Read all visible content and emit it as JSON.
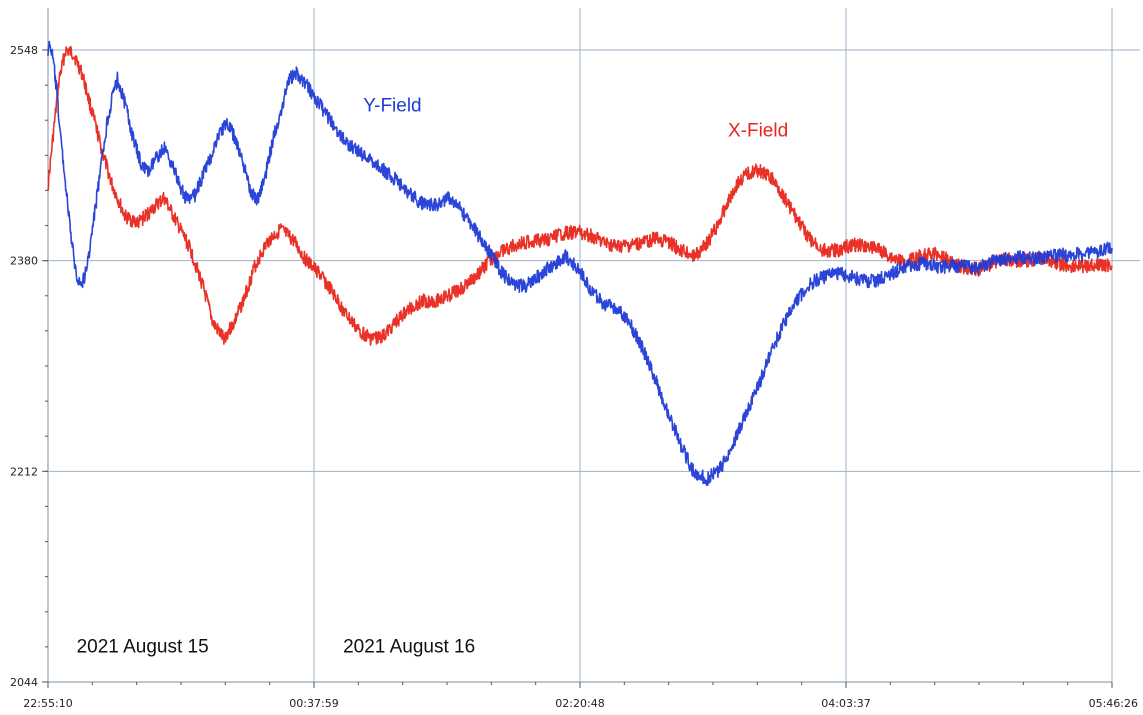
{
  "chart_data": {
    "type": "line",
    "grid": true,
    "y_ticks": [
      2044,
      2212,
      2380,
      2548
    ],
    "ylim": [
      2044,
      2548
    ],
    "x_ticks": [
      "22:55:10",
      "00:37:59",
      "02:20:48",
      "04:03:37",
      "05:46:26"
    ],
    "xlim": [
      "22:55:10",
      "05:46:26"
    ],
    "annotations": [
      {
        "text": "2021 August 15",
        "time": "22:58:30",
        "value": 2066
      },
      {
        "text": "2021 August 16",
        "time": "00:41:30",
        "value": 2066
      }
    ],
    "series": [
      {
        "name": "X-Field",
        "color": "#e8261b",
        "label_at": {
          "time": "03:18:00",
          "value": 2479
        },
        "x": [
          "22:55:10",
          "22:57:10",
          "22:59:30",
          "23:02:00",
          "23:05:00",
          "23:08:30",
          "23:12:00",
          "23:16:00",
          "23:20:00",
          "23:25:00",
          "23:30:00",
          "23:35:00",
          "23:40:00",
          "23:45:00",
          "23:50:00",
          "23:55:00",
          "23:59:00",
          "00:03:00",
          "00:07:00",
          "00:11:00",
          "00:15:00",
          "00:20:00",
          "00:25:00",
          "00:30:00",
          "00:35:00",
          "00:40:00",
          "00:45:00",
          "00:50:00",
          "00:55:00",
          "01:00:00",
          "01:05:00",
          "01:10:00",
          "01:15:00",
          "01:20:00",
          "01:25:00",
          "01:30:00",
          "01:35:00",
          "01:40:00",
          "01:45:00",
          "01:50:00",
          "01:55:00",
          "02:00:00",
          "02:05:00",
          "02:10:00",
          "02:15:00",
          "02:20:00",
          "02:25:00",
          "02:30:00",
          "02:35:00",
          "02:40:00",
          "02:45:00",
          "02:50:00",
          "02:55:00",
          "03:00:00",
          "03:05:00",
          "03:10:00",
          "03:15:00",
          "03:18:00",
          "03:22:00",
          "03:26:00",
          "03:30:00",
          "03:35:00",
          "03:40:00",
          "03:45:00",
          "03:50:00",
          "03:55:00",
          "04:00:00",
          "04:05:00",
          "04:10:00",
          "04:15:00",
          "04:20:00",
          "04:25:00",
          "04:30:00",
          "04:35:00",
          "04:40:00",
          "04:45:00",
          "04:50:00",
          "04:55:00",
          "05:00:00",
          "05:05:00",
          "05:10:00",
          "05:15:00",
          "05:20:00",
          "05:25:00",
          "05:30:00",
          "05:35:00",
          "05:40:00",
          "05:46:26"
        ],
        "y": [
          2440,
          2480,
          2525,
          2548,
          2545,
          2528,
          2500,
          2468,
          2440,
          2415,
          2410,
          2420,
          2430,
          2410,
          2390,
          2360,
          2330,
          2318,
          2330,
          2350,
          2375,
          2395,
          2405,
          2396,
          2380,
          2370,
          2355,
          2338,
          2325,
          2318,
          2320,
          2332,
          2342,
          2348,
          2348,
          2352,
          2358,
          2366,
          2378,
          2386,
          2392,
          2395,
          2396,
          2398,
          2402,
          2403,
          2400,
          2394,
          2391,
          2392,
          2394,
          2398,
          2395,
          2388,
          2384,
          2394,
          2412,
          2428,
          2442,
          2450,
          2452,
          2445,
          2430,
          2412,
          2396,
          2388,
          2388,
          2392,
          2393,
          2390,
          2384,
          2379,
          2382,
          2385,
          2385,
          2378,
          2374,
          2373,
          2378,
          2381,
          2380,
          2380,
          2382,
          2378,
          2375,
          2376,
          2376,
          2376
        ]
      },
      {
        "name": "Y-Field",
        "color": "#1f3bd6",
        "label_at": {
          "time": "00:57:00",
          "value": 2499
        },
        "x": [
          "22:55:10",
          "22:56:00",
          "22:57:10",
          "22:58:30",
          "23:00:00",
          "23:02:00",
          "23:04:00",
          "23:06:00",
          "23:08:00",
          "23:10:00",
          "23:12:00",
          "23:14:00",
          "23:16:00",
          "23:18:00",
          "23:20:00",
          "23:22:00",
          "23:25:00",
          "23:28:00",
          "23:31:00",
          "23:34:00",
          "23:37:00",
          "23:40:00",
          "23:43:00",
          "23:46:00",
          "23:49:00",
          "23:52:00",
          "23:55:00",
          "23:58:00",
          "00:01:00",
          "00:04:00",
          "00:07:00",
          "00:10:00",
          "00:13:00",
          "00:16:00",
          "00:19:00",
          "00:22:00",
          "00:25:00",
          "00:28:00",
          "00:31:00",
          "00:35:00",
          "00:40:00",
          "00:45:00",
          "00:50:00",
          "00:55:00",
          "01:00:00",
          "01:05:00",
          "01:10:00",
          "01:15:00",
          "01:20:00",
          "01:25:00",
          "01:30:00",
          "01:35:00",
          "01:40:00",
          "01:45:00",
          "01:50:00",
          "01:55:00",
          "02:00:00",
          "02:05:00",
          "02:10:00",
          "02:15:00",
          "02:20:00",
          "02:25:00",
          "02:30:00",
          "02:35:00",
          "02:40:00",
          "02:45:00",
          "02:50:00",
          "02:55:00",
          "03:00:00",
          "03:05:00",
          "03:10:00",
          "03:15:00",
          "03:20:00",
          "03:25:00",
          "03:30:00",
          "03:35:00",
          "03:40:00",
          "03:45:00",
          "03:50:00",
          "03:55:00",
          "04:00:00",
          "04:05:00",
          "04:10:00",
          "04:15:00",
          "04:20:00",
          "04:25:00",
          "04:30:00",
          "04:35:00",
          "04:40:00",
          "04:45:00",
          "04:50:00",
          "04:55:00",
          "05:00:00",
          "05:05:00",
          "05:10:00",
          "05:15:00",
          "05:20:00",
          "05:25:00",
          "05:30:00",
          "05:35:00",
          "05:40:00",
          "05:46:26"
        ],
        "y": [
          2548,
          2552,
          2540,
          2515,
          2480,
          2440,
          2400,
          2370,
          2360,
          2372,
          2400,
          2430,
          2460,
          2490,
          2510,
          2525,
          2505,
          2478,
          2458,
          2450,
          2462,
          2470,
          2458,
          2440,
          2428,
          2432,
          2448,
          2462,
          2480,
          2490,
          2480,
          2462,
          2438,
          2428,
          2446,
          2476,
          2498,
          2524,
          2530,
          2520,
          2505,
          2490,
          2475,
          2467,
          2460,
          2452,
          2444,
          2433,
          2425,
          2424,
          2430,
          2420,
          2405,
          2390,
          2372,
          2360,
          2360,
          2368,
          2376,
          2384,
          2374,
          2356,
          2346,
          2342,
          2330,
          2310,
          2285,
          2258,
          2232,
          2210,
          2206,
          2214,
          2234,
          2258,
          2282,
          2308,
          2332,
          2350,
          2362,
          2367,
          2370,
          2368,
          2364,
          2364,
          2368,
          2374,
          2377,
          2377,
          2375,
          2376,
          2376,
          2375,
          2379,
          2382,
          2383,
          2382,
          2382,
          2384,
          2385,
          2385,
          2387,
          2390
        ]
      }
    ]
  }
}
